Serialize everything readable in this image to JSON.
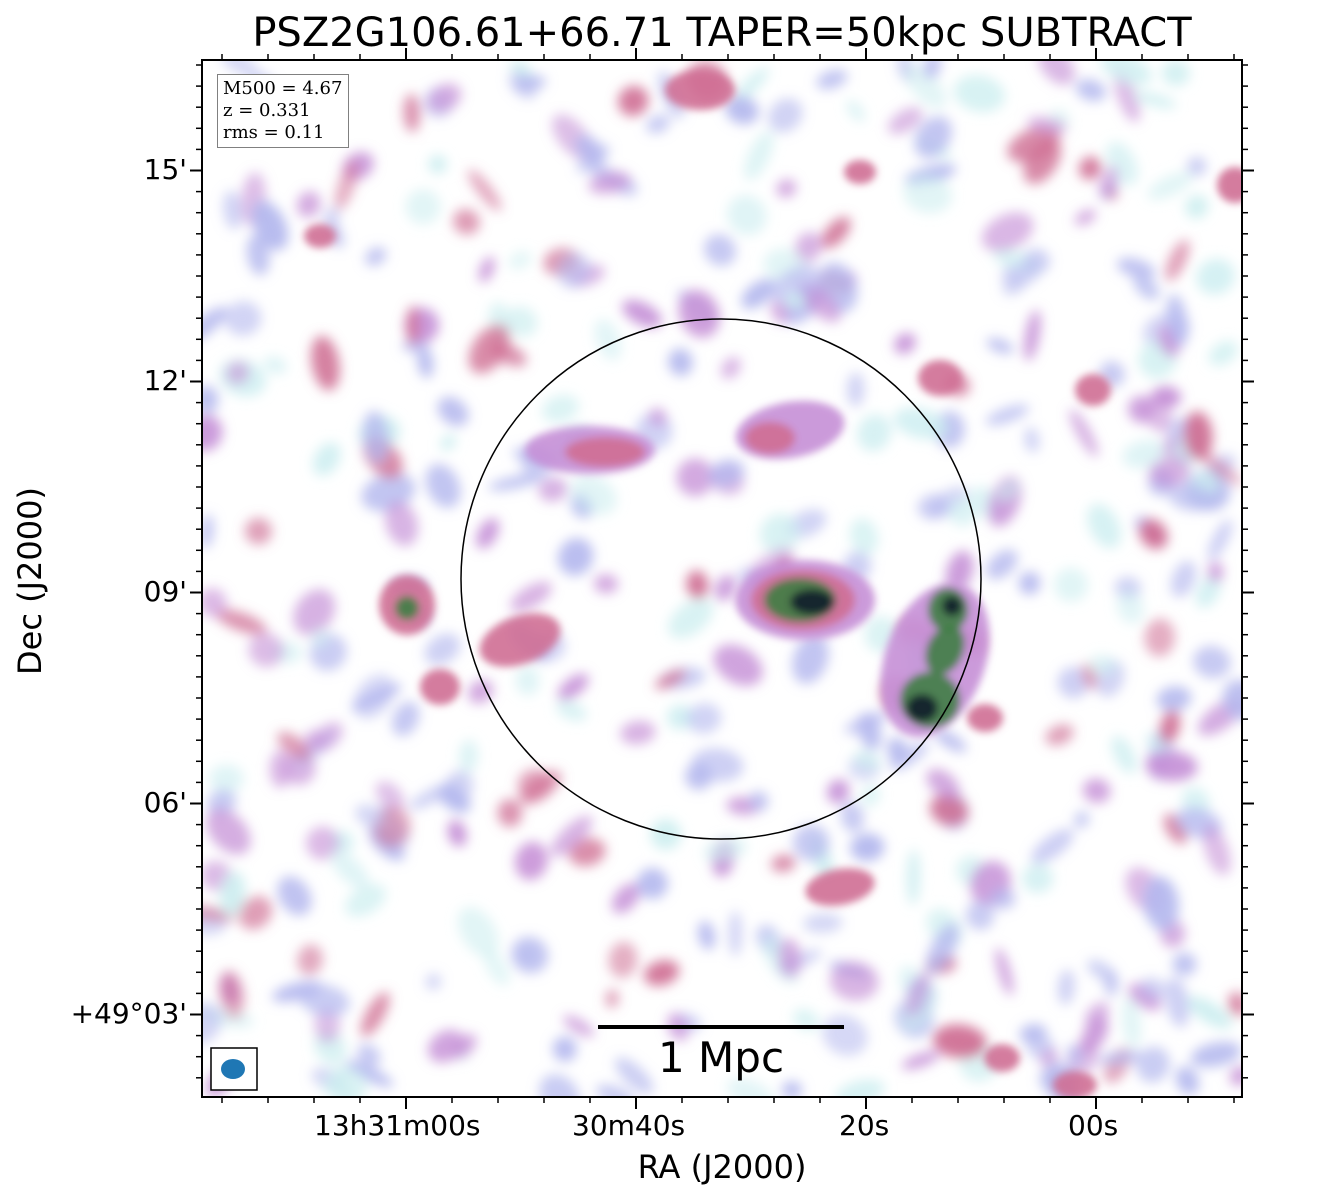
{
  "title": "PSZ2G106.61+66.71 TAPER=50kpc SUBTRACT",
  "axes": {
    "xlabel": "RA (J2000)",
    "ylabel": "Dec (J2000)",
    "x_ticks": [
      "13h31m00s",
      "30m40s",
      "20s",
      "00s"
    ],
    "y_ticks": [
      "15'",
      "12'",
      "09'",
      "06'",
      "+49°03'"
    ]
  },
  "info": {
    "mass": "M500 = 4.67",
    "redshift": "z = 0.331",
    "rms": "rms = 0.11"
  },
  "scalebar": {
    "label": "1 Mpc"
  },
  "beam": {
    "color": "#1f77b4"
  },
  "colors": {
    "faint": "#cdeef0",
    "low": "#b4b8ee",
    "mid": "#c58fd6",
    "high": "#cf6f94",
    "bright": "#3f7d44",
    "peak": "#0e1c2a"
  }
}
